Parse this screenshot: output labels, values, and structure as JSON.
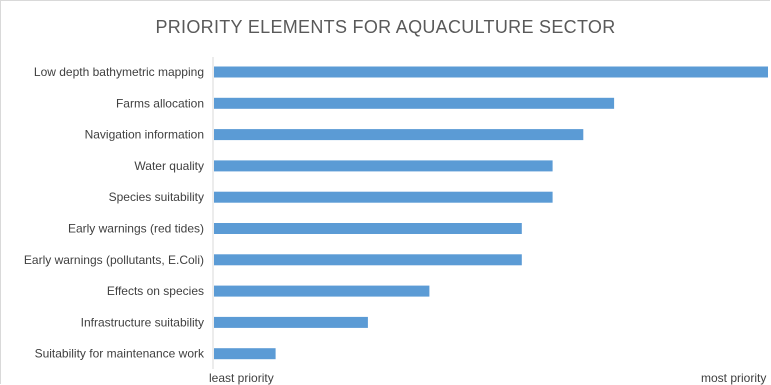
{
  "chart_data": {
    "type": "bar",
    "orientation": "horizontal",
    "title": "PRIORITY ELEMENTS FOR AQUACULTURE SECTOR",
    "categories": [
      "Low depth bathymetric mapping",
      "Farms allocation",
      "Navigation information",
      "Water quality",
      "Species suitability",
      "Early warnings (red tides)",
      "Early warnings (pollutants, E.Coli)",
      "Effects on species",
      "Infrastructure suitability",
      "Suitability for maintenance work"
    ],
    "values": [
      18,
      13,
      12,
      11,
      11,
      10,
      10,
      7,
      5,
      2
    ],
    "xlim": [
      0,
      18
    ],
    "x_axis_labels": {
      "min": "least priority",
      "max": "most priority"
    },
    "grid": false,
    "legend": "none",
    "bar_color": "#5b9bd5"
  }
}
